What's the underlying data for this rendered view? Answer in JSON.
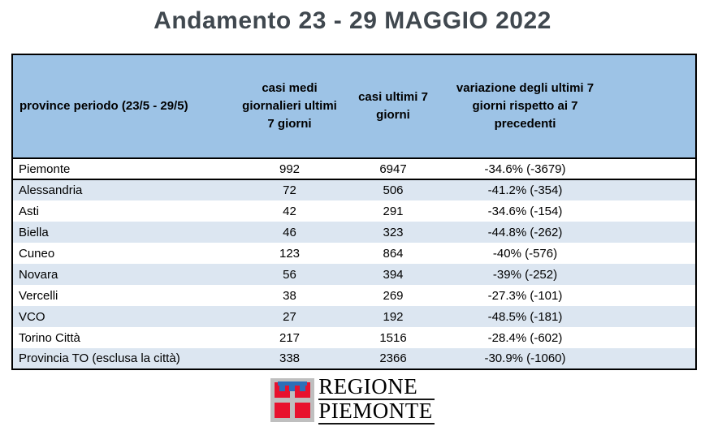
{
  "title": "Andamento 23 - 29 MAGGIO 2022",
  "table": {
    "header": {
      "col_province": "province periodo (23/5 - 29/5)",
      "col_avg": "casi medi giornalieri ultimi 7 giorni",
      "col_last7": "casi ultimi 7 giorni",
      "col_variation": "variazione degli ultimi 7 giorni rispetto ai 7 precedenti"
    },
    "rows": [
      {
        "name": "Piemonte",
        "avg": "992",
        "last7": "6947",
        "variation": "-34.6% (-3679)"
      },
      {
        "name": "Alessandria",
        "avg": "72",
        "last7": "506",
        "variation": "-41.2% (-354)"
      },
      {
        "name": "Asti",
        "avg": "42",
        "last7": "291",
        "variation": "-34.6% (-154)"
      },
      {
        "name": "Biella",
        "avg": "46",
        "last7": "323",
        "variation": "-44.8% (-262)"
      },
      {
        "name": "Cuneo",
        "avg": "123",
        "last7": "864",
        "variation": "-40% (-576)"
      },
      {
        "name": "Novara",
        "avg": "56",
        "last7": "394",
        "variation": "-39% (-252)"
      },
      {
        "name": "Vercelli",
        "avg": "38",
        "last7": "269",
        "variation": "-27.3% (-101)"
      },
      {
        "name": "VCO",
        "avg": "27",
        "last7": "192",
        "variation": "-48.5% (-181)"
      },
      {
        "name": "Torino Città",
        "avg": "217",
        "last7": "1516",
        "variation": "-28.4% (-602)"
      },
      {
        "name": "Provincia TO (esclusa la città)",
        "avg": "338",
        "last7": "2366",
        "variation": "-30.9% (-1060)"
      }
    ]
  },
  "logo": {
    "line1": "REGIONE",
    "line2": "PIEMONTE",
    "emblem": "piemonte-coat-of-arms"
  },
  "colors": {
    "header_bg": "#9DC3E6",
    "row_alt_bg": "#DCE6F1",
    "table_border": "#000000",
    "title_text": "#40484F",
    "logo_red": "#E8112D",
    "logo_blue": "#2D6FB7",
    "logo_silver": "#BFBFBF"
  }
}
